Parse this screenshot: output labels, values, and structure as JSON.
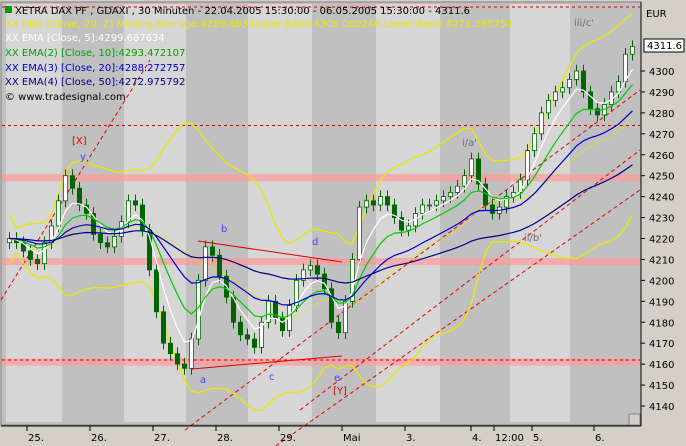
{
  "colors": {
    "background": "#d4d0c8",
    "plot_bg": "#c0c0c0",
    "band_light": "#d6d6d6",
    "candle": "#006400",
    "bb": "#e8e800",
    "ema5": "#ffffff",
    "ema10": "#00cc00",
    "ema20": "#0000cc",
    "ema50": "#000080",
    "channel": "#e00000",
    "zone": "#ff9999"
  },
  "header": {
    "title": "XETRA DAX PF , GDAXI , 30 Minuten - 22.04.2005 15:30:00 - 06.05.2005 15:30:00 - 4311.6",
    "legend_bbd": "XX BBD [Close, 20, 2] Moving Average:4289.663 Upper Band:4308.060246 Lower Band:4271.265754",
    "legend_ema": "XX EMA [Close, 5]:4299.687634",
    "legend_ema2": "XX EMA(2) [Close, 10]:4293.472107",
    "legend_ema3": "XX EMA(3) [Close, 20]:4288.272757",
    "legend_ema4": "XX EMA(4) [Close, 50]:4272.975792",
    "copyright": "© www.tradesignal.com"
  },
  "axis": {
    "currency": "EUR",
    "last_price": "4311.6"
  },
  "annotations": {
    "wave_X": "[X]",
    "wave_Y": "[Y]",
    "wave_y": "y",
    "wave_a": "a",
    "wave_b": "b",
    "wave_c": "c",
    "wave_d": "d",
    "wave_e": "e",
    "wave_i_a": "i/a'",
    "wave_ii_b": "ii/b'",
    "wave_iii_c": "iii/c'"
  },
  "chart_data": {
    "type": "candlestick",
    "title": "XETRA DAX PF , GDAXI , 30 Minuten",
    "ylabel": "EUR",
    "ylim": [
      4132,
      4320
    ],
    "y_ticks": [
      4140,
      4150,
      4160,
      4170,
      4180,
      4190,
      4200,
      4210,
      4220,
      4230,
      4240,
      4250,
      4260,
      4270,
      4280,
      4290,
      4300
    ],
    "x_tick_labels": [
      "25.",
      "26.",
      "27.",
      "28.",
      "29.",
      "Mai",
      "3.",
      "4.",
      "12:00",
      "5.",
      "6."
    ],
    "close_series": [
      4220,
      4218,
      4214,
      4210,
      4208,
      4218,
      4226,
      4238,
      4250,
      4244,
      4236,
      4232,
      4222,
      4218,
      4216,
      4221,
      4228,
      4238,
      4236,
      4224,
      4205,
      4185,
      4170,
      4165,
      4160,
      4158,
      4172,
      4200,
      4216,
      4212,
      4202,
      4192,
      4180,
      4174,
      4172,
      4168,
      4180,
      4190,
      4182,
      4176,
      4188,
      4200,
      4205,
      4207,
      4203,
      4196,
      4180,
      4175,
      4190,
      4210,
      4235,
      4238,
      4236,
      4240,
      4236,
      4230,
      4224,
      4226,
      4232,
      4236,
      4236,
      4238,
      4240,
      4242,
      4245,
      4250,
      4258,
      4246,
      4236,
      4232,
      4235,
      4240,
      4242,
      4248,
      4262,
      4270,
      4280,
      4286,
      4290,
      4292,
      4296,
      4300,
      4290,
      4282,
      4279,
      4284,
      4290,
      4295,
      4308,
      4311.6
    ],
    "ema_periods": [
      5,
      10,
      20,
      50
    ],
    "bollinger": {
      "period": 20,
      "stddev": 2
    },
    "last": {
      "bb_ma": 4289.663,
      "bb_upper": 4308.060246,
      "bb_lower": 4271.265754,
      "ema5": 4299.687634,
      "ema10": 4293.472107,
      "ema20": 4288.272757,
      "ema50": 4272.975792,
      "close": 4311.6
    },
    "horizontal_zones": [
      4161,
      4209,
      4249
    ],
    "horizontal_lines": [
      4162,
      4274
    ],
    "legend_placement": "top-left",
    "grid": false
  }
}
